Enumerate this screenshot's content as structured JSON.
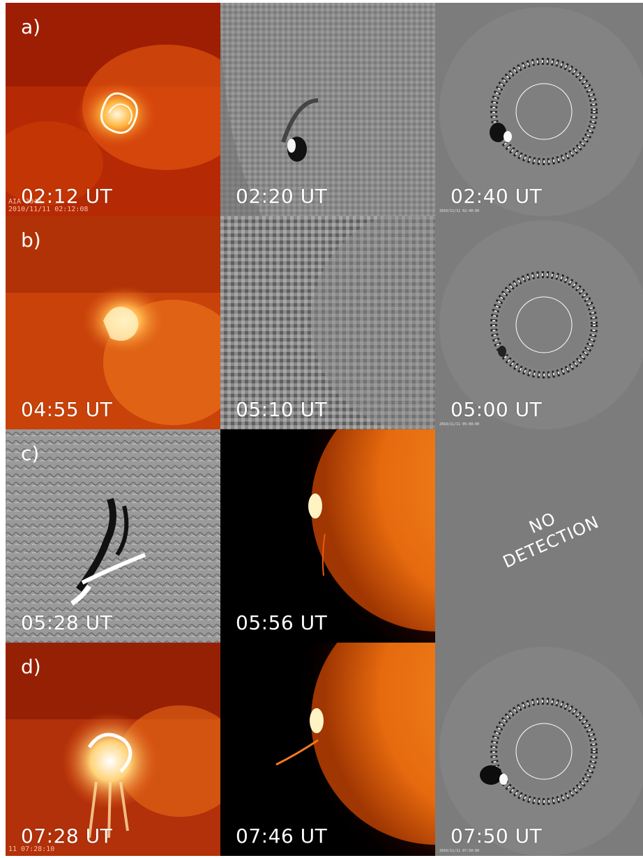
{
  "rows": [
    {
      "label": "a)",
      "panels": [
        {
          "time": "02:12 UT",
          "stamp_line1": "AIA 304Å",
          "stamp_line2": "2010/11/11 02:12:08"
        },
        {
          "time": "02:20 UT"
        },
        {
          "time": "02:40 UT",
          "stamp": "2010/11/11 02:40:00"
        }
      ]
    },
    {
      "label": "b)",
      "panels": [
        {
          "time": "04:55 UT"
        },
        {
          "time": "05:10 UT"
        },
        {
          "time": "05:00 UT",
          "stamp": "2010/11/11 05:00:00"
        }
      ]
    },
    {
      "label": "c)",
      "panels": [
        {
          "time": "05:28 UT"
        },
        {
          "time": "05:56 UT"
        },
        {
          "no_detection_line1": "NO",
          "no_detection_line2": "DETECTION"
        }
      ]
    },
    {
      "label": "d)",
      "panels": [
        {
          "time": "07:28 UT",
          "stamp": "11 07:28:10"
        },
        {
          "time": "07:46 UT"
        },
        {
          "time": "07:50 UT",
          "stamp": "2010/11/11 07:50:00"
        }
      ]
    }
  ],
  "colors": {
    "aia_dark": "#7a0a00",
    "aia_mid": "#d23a06",
    "aia_bright": "#fff6d0",
    "diff_grey": "#8a8a8a",
    "coronagraph_bg": "#7c7c7c",
    "sun_disk": "#e8740f",
    "space": "#000000"
  }
}
